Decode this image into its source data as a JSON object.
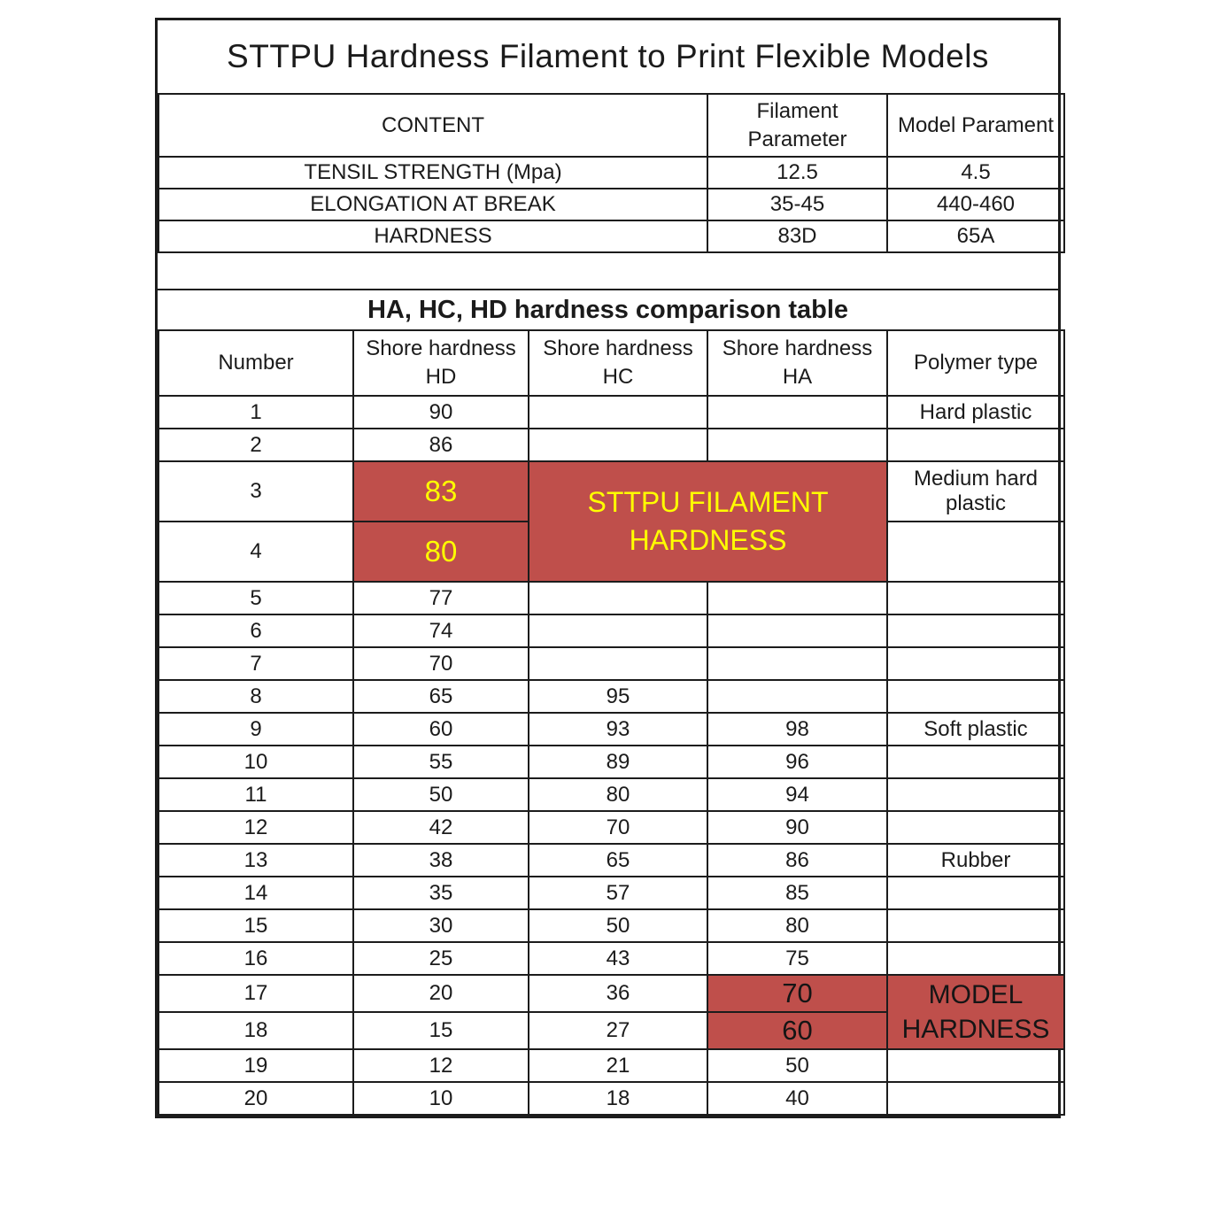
{
  "title": "STTPU Hardness Filament to Print Flexible Models",
  "colors": {
    "highlight_bg": "#BF4F4B",
    "highlight_yellow_text": "#FFFF00",
    "border": "#1C1C1C"
  },
  "spec_table": {
    "headers": [
      "CONTENT",
      "Filament Parameter",
      "Model Parament"
    ],
    "rows": [
      {
        "content": "TENSIL STRENGTH (Mpa)",
        "filament": "12.5",
        "model": "4.5"
      },
      {
        "content": "ELONGATION AT BREAK",
        "filament": "35-45",
        "model": "440-460"
      },
      {
        "content": "HARDNESS",
        "filament": "83D",
        "model": "65A"
      }
    ]
  },
  "comparison_table": {
    "title": "HA, HC, HD hardness comparison table",
    "headers": [
      "Number",
      "Shore hardness HD",
      "Shore hardness HC",
      "Shore hardness HA",
      "Polymer type"
    ],
    "filament_highlight_label": "STTPU FILAMENT HARDNESS",
    "model_highlight_label": "MODEL HARDNESS",
    "rows": [
      {
        "number": "1",
        "hd": "90",
        "hc": "",
        "ha": "",
        "polymer": "Hard plastic"
      },
      {
        "number": "2",
        "hd": "86",
        "hc": "",
        "ha": "",
        "polymer": ""
      },
      {
        "number": "3",
        "hd": "83",
        "hc": "",
        "ha": "",
        "polymer": "Medium hard plastic",
        "hd_highlight": true,
        "tall": true
      },
      {
        "number": "4",
        "hd": "80",
        "hc": "",
        "ha": "",
        "polymer": "",
        "hd_highlight": true,
        "tall": true
      },
      {
        "number": "5",
        "hd": "77",
        "hc": "",
        "ha": "",
        "polymer": ""
      },
      {
        "number": "6",
        "hd": "74",
        "hc": "",
        "ha": "",
        "polymer": ""
      },
      {
        "number": "7",
        "hd": "70",
        "hc": "",
        "ha": "",
        "polymer": ""
      },
      {
        "number": "8",
        "hd": "65",
        "hc": "95",
        "ha": "",
        "polymer": ""
      },
      {
        "number": "9",
        "hd": "60",
        "hc": "93",
        "ha": "98",
        "polymer": "Soft plastic"
      },
      {
        "number": "10",
        "hd": "55",
        "hc": "89",
        "ha": "96",
        "polymer": ""
      },
      {
        "number": "11",
        "hd": "50",
        "hc": "80",
        "ha": "94",
        "polymer": ""
      },
      {
        "number": "12",
        "hd": "42",
        "hc": "70",
        "ha": "90",
        "polymer": ""
      },
      {
        "number": "13",
        "hd": "38",
        "hc": "65",
        "ha": "86",
        "polymer": "Rubber"
      },
      {
        "number": "14",
        "hd": "35",
        "hc": "57",
        "ha": "85",
        "polymer": ""
      },
      {
        "number": "15",
        "hd": "30",
        "hc": "50",
        "ha": "80",
        "polymer": ""
      },
      {
        "number": "16",
        "hd": "25",
        "hc": "43",
        "ha": "75",
        "polymer": ""
      },
      {
        "number": "17",
        "hd": "20",
        "hc": "36",
        "ha": "70",
        "polymer": "",
        "ha_highlight": true
      },
      {
        "number": "18",
        "hd": "15",
        "hc": "27",
        "ha": "60",
        "polymer": "",
        "ha_highlight": true
      },
      {
        "number": "19",
        "hd": "12",
        "hc": "21",
        "ha": "50",
        "polymer": ""
      },
      {
        "number": "20",
        "hd": "10",
        "hc": "18",
        "ha": "40",
        "polymer": ""
      }
    ],
    "merges": {
      "filament": {
        "row_start": 2,
        "row_span": 2,
        "col_span": 2,
        "label_key": "filament_highlight_label"
      },
      "model": {
        "row_start": 16,
        "row_span": 2,
        "col_span": 1,
        "label_key": "model_highlight_label"
      }
    }
  }
}
